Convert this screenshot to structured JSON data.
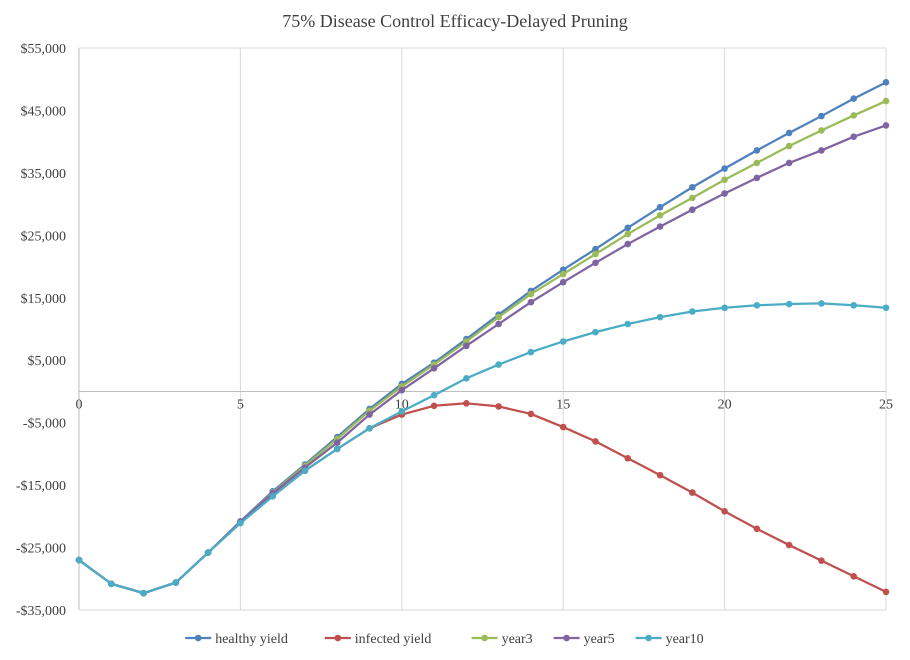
{
  "chart_data": {
    "type": "line",
    "title": "75% Disease Control Efficacy-Delayed  Pruning",
    "xlabel": "",
    "ylabel": "",
    "xlim": [
      0,
      25
    ],
    "ylim": [
      -35000,
      55000
    ],
    "x_ticks": [
      0,
      5,
      10,
      15,
      20,
      25
    ],
    "x_tick_labels": [
      "0",
      "5",
      "10",
      "15",
      "20",
      "25"
    ],
    "y_ticks": [
      -35000,
      -25000,
      -15000,
      -5000,
      5000,
      15000,
      25000,
      35000,
      45000,
      55000
    ],
    "y_tick_labels": [
      "-$35,000",
      "-$25,000",
      "-$15,000",
      "-$5,000",
      "$5,000",
      "$15,000",
      "$25,000",
      "$35,000",
      "$45,000",
      "$55,000"
    ],
    "grid": "vertical",
    "legend_position": "bottom",
    "x": [
      0,
      1,
      2,
      3,
      4,
      5,
      6,
      7,
      8,
      9,
      10,
      11,
      12,
      13,
      14,
      15,
      16,
      17,
      18,
      19,
      20,
      21,
      22,
      23,
      24,
      25
    ],
    "series": [
      {
        "name": "healthy yield",
        "color": "#4f81bd",
        "values": [
          -27000,
          -30800,
          -32300,
          -30600,
          -25800,
          -20800,
          -16000,
          -11700,
          -7300,
          -2800,
          1200,
          4600,
          8400,
          12300,
          16100,
          19500,
          22800,
          26200,
          29500,
          32700,
          35700,
          38600,
          41400,
          44100,
          46900,
          49500
        ]
      },
      {
        "name": "infected yield",
        "color": "#c0504d",
        "values": [
          -27000,
          -30800,
          -32300,
          -30600,
          -25800,
          -21000,
          -16700,
          -12700,
          -9200,
          -5900,
          -3700,
          -2300,
          -1900,
          -2400,
          -3600,
          -5700,
          -8000,
          -10700,
          -13400,
          -16200,
          -19200,
          -22000,
          -24600,
          -27100,
          -29600,
          -32100
        ]
      },
      {
        "name": "year3",
        "color": "#9bbb59",
        "values": [
          -27000,
          -30800,
          -32300,
          -30600,
          -25800,
          -20900,
          -16200,
          -11900,
          -7600,
          -3100,
          800,
          4300,
          8000,
          11900,
          15600,
          18800,
          22000,
          25200,
          28200,
          31000,
          33900,
          36600,
          39300,
          41800,
          44200,
          46500
        ]
      },
      {
        "name": "year5",
        "color": "#8064a2",
        "values": [
          -27000,
          -30800,
          -32300,
          -30600,
          -25800,
          -20900,
          -16300,
          -12200,
          -8200,
          -3700,
          200,
          3700,
          7300,
          10800,
          14300,
          17500,
          20600,
          23600,
          26400,
          29100,
          31700,
          34200,
          36600,
          38600,
          40800,
          42600
        ]
      },
      {
        "name": "year10",
        "color": "#4bacc6",
        "values": [
          -27000,
          -30800,
          -32300,
          -30600,
          -25800,
          -21100,
          -16800,
          -12700,
          -9200,
          -5900,
          -3200,
          -600,
          2100,
          4300,
          6300,
          8000,
          9500,
          10800,
          11900,
          12800,
          13400,
          13800,
          14000,
          14100,
          13800,
          13400
        ]
      }
    ]
  }
}
